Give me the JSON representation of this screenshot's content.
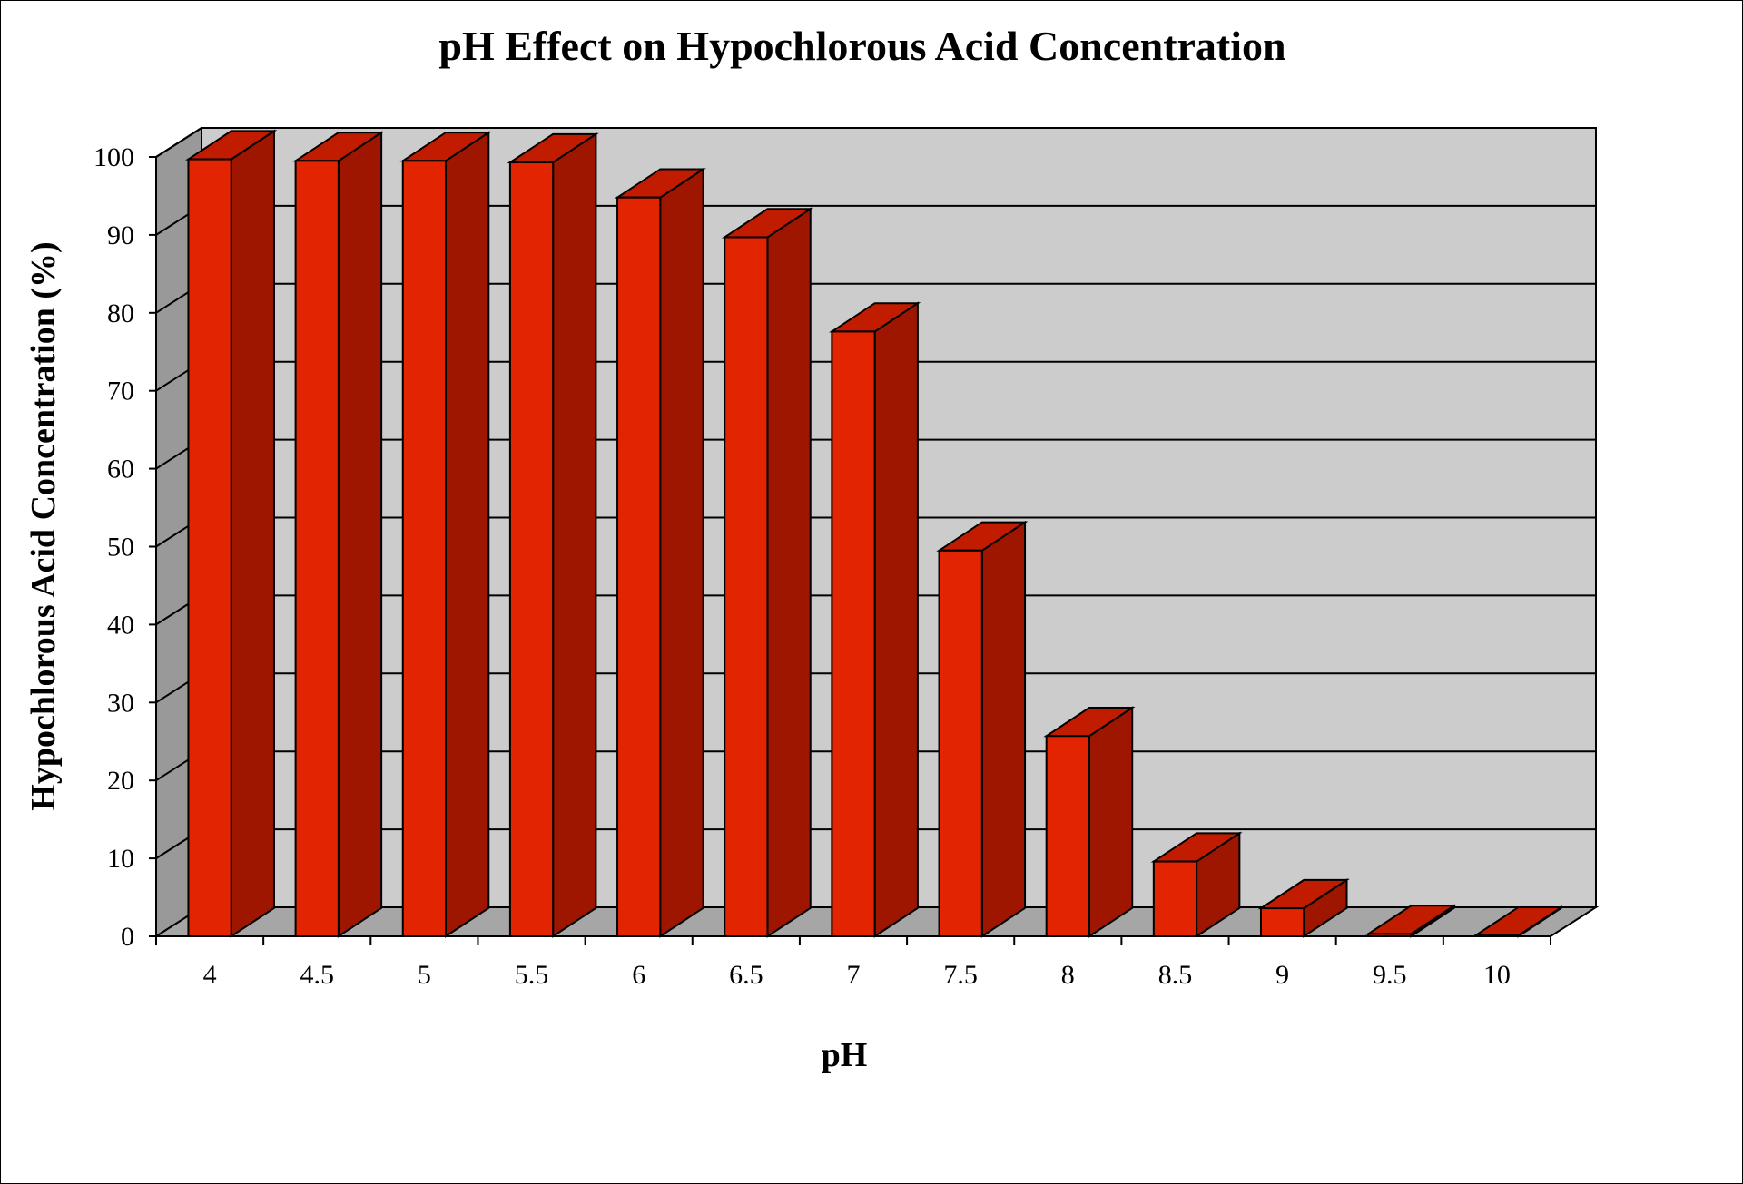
{
  "chart_data": {
    "type": "bar",
    "title": "pH Effect on Hypochlorous Acid Concentration",
    "xlabel": "pH",
    "ylabel": "Hypochlorous Acid Concentration (%)",
    "categories": [
      "4",
      "4.5",
      "5",
      "5.5",
      "6",
      "6.5",
      "7",
      "7.5",
      "8",
      "8.5",
      "9",
      "9.5",
      "10"
    ],
    "values": [
      99.7,
      99.5,
      99.5,
      99.3,
      94.8,
      89.7,
      77.6,
      49.5,
      25.7,
      9.6,
      3.6,
      0.3,
      0.1
    ],
    "ylim": [
      0,
      100
    ],
    "yticks": [
      "0",
      "10",
      "20",
      "30",
      "40",
      "50",
      "60",
      "70",
      "80",
      "90",
      "100"
    ],
    "grid": true,
    "legend": "none",
    "style": "3d-column"
  },
  "colors": {
    "bar_front": "#E32400",
    "bar_side": "#9E1600",
    "bar_top": "#C21C00",
    "back_wall": "#CCCCCC",
    "side_wall": "#999999",
    "floor": "#A6A6A6"
  }
}
